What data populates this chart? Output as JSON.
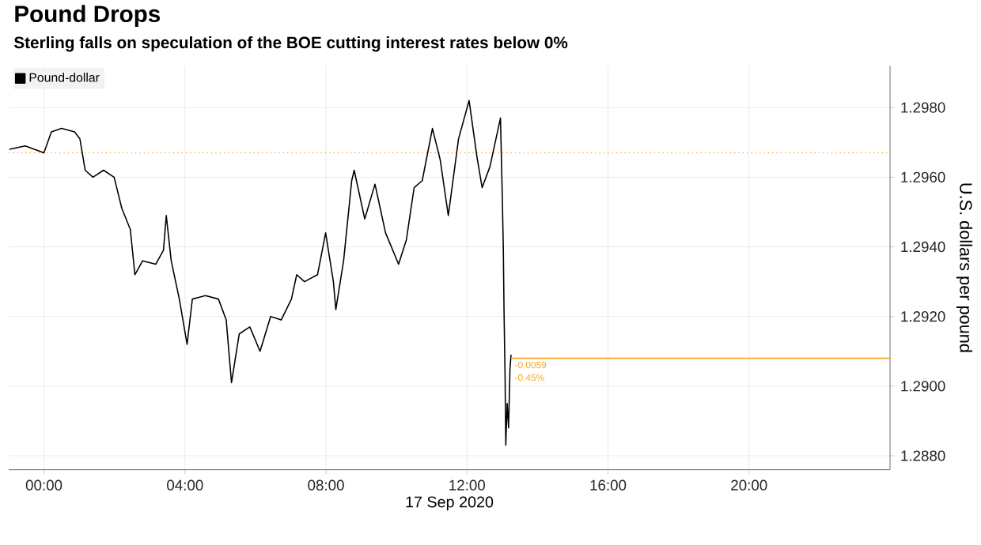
{
  "chart_data": {
    "type": "line",
    "title": "Pound Drops",
    "subtitle": "Sterling falls on speculation of the BOE cutting interest rates below 0%",
    "xlabel": "17 Sep 2020",
    "ylabel": "U.S. dollars per pound",
    "xlim": [
      -1,
      24
    ],
    "xticks": [
      {
        "value": 0,
        "label": "00:00"
      },
      {
        "value": 4,
        "label": "04:00"
      },
      {
        "value": 8,
        "label": "08:00"
      },
      {
        "value": 12,
        "label": "12:00"
      },
      {
        "value": 16,
        "label": "16:00"
      },
      {
        "value": 20,
        "label": "20:00"
      }
    ],
    "ylim": [
      1.2876,
      1.2992
    ],
    "yticks": [
      {
        "value": 1.288,
        "label": "1.2880"
      },
      {
        "value": 1.29,
        "label": "1.2900"
      },
      {
        "value": 1.292,
        "label": "1.2920"
      },
      {
        "value": 1.294,
        "label": "1.2940"
      },
      {
        "value": 1.296,
        "label": "1.2960"
      },
      {
        "value": 1.298,
        "label": "1.2980"
      }
    ],
    "grid": true,
    "legend": "top left",
    "marker": "none",
    "line_style": "solid",
    "series": [
      {
        "name": "Pound-dollar",
        "color": "#000000",
        "x": [
          -0.98,
          -0.53,
          0,
          0.21,
          0.5,
          0.87,
          1.02,
          1.17,
          1.39,
          1.69,
          1.99,
          2.21,
          2.45,
          2.58,
          2.8,
          3.17,
          3.39,
          3.47,
          3.61,
          3.84,
          4.06,
          4.21,
          4.58,
          4.95,
          5.17,
          5.32,
          5.54,
          5.84,
          6.13,
          6.43,
          6.73,
          7.02,
          7.17,
          7.39,
          7.76,
          7.99,
          8.21,
          8.28,
          8.5,
          8.73,
          8.8,
          9.1,
          9.39,
          9.69,
          10.06,
          10.28,
          10.5,
          10.73,
          11.02,
          11.24,
          11.47,
          11.76,
          12.06,
          12.28,
          12.43,
          12.65,
          12.95,
          13.0,
          13.03,
          13.05,
          13.08,
          13.1,
          13.14,
          13.18,
          13.22,
          13.25
        ],
        "values": [
          1.2968,
          1.2969,
          1.2967,
          1.2973,
          1.2974,
          1.2973,
          1.2971,
          1.2962,
          1.296,
          1.2962,
          1.296,
          1.2951,
          1.2945,
          1.2932,
          1.2936,
          1.2935,
          1.2939,
          1.2949,
          1.2936,
          1.2925,
          1.2912,
          1.2925,
          1.2926,
          1.2925,
          1.2919,
          1.2901,
          1.2915,
          1.2917,
          1.291,
          1.292,
          1.2919,
          1.2925,
          1.2932,
          1.293,
          1.2932,
          1.2944,
          1.293,
          1.2922,
          1.2936,
          1.2959,
          1.2962,
          1.2948,
          1.2958,
          1.2944,
          1.2935,
          1.2942,
          1.2957,
          1.2959,
          1.2974,
          1.2965,
          1.2949,
          1.2971,
          1.2982,
          1.2966,
          1.2957,
          1.2963,
          1.2977,
          1.2955,
          1.294,
          1.2922,
          1.2903,
          1.2883,
          1.2895,
          1.2888,
          1.2905,
          1.2909
        ]
      },
      {
        "type": "line",
        "color": "#f5a623",
        "x": [
          13.25,
          24
        ],
        "values": [
          1.2908,
          1.2908
        ]
      }
    ],
    "ref_lines": [
      {
        "axis": "y",
        "value": 1.2967,
        "color": "#f5a623",
        "line_style": "dotted"
      }
    ],
    "annotations": [
      {
        "text": "-0.0059",
        "x": 13.3,
        "y": 1.2908
      },
      {
        "text": "-0.45%",
        "x": 13.3,
        "y": 1.2908
      }
    ]
  }
}
